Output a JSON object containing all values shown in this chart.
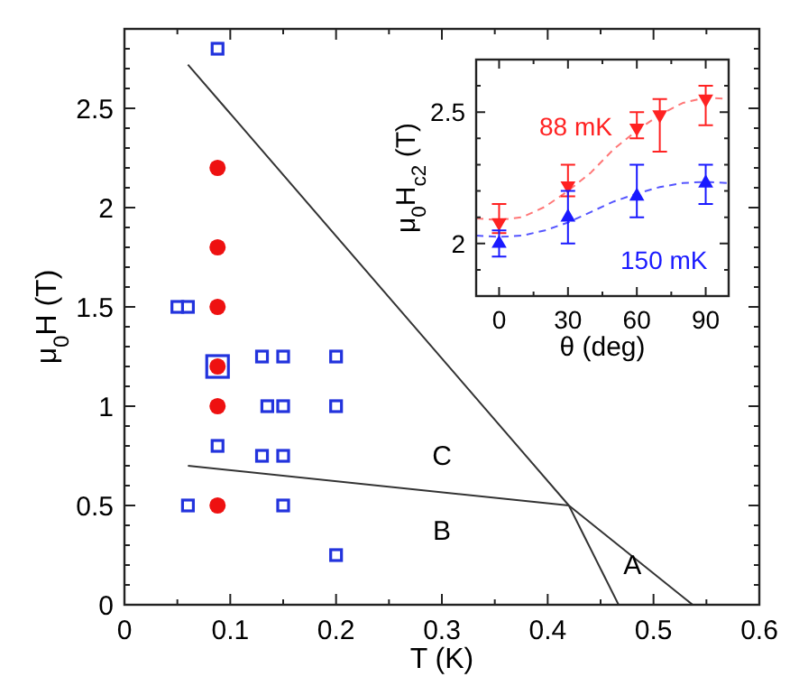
{
  "chart_data": [
    {
      "type": "scatter",
      "xlabel": "T (K)",
      "ylabel": "μ$_{0}$H (T)",
      "xlim": [
        0,
        0.6
      ],
      "ylim": [
        0,
        2.9
      ],
      "xticks": [
        0,
        {
          "value": 0.05,
          "label": null
        },
        0.1,
        {
          "value": 0.15,
          "label": null
        },
        0.2,
        {
          "value": 0.25,
          "label": null
        },
        0.3,
        {
          "value": 0.35,
          "label": null
        },
        0.4,
        {
          "value": 0.45,
          "label": null
        },
        0.5,
        {
          "value": 0.55,
          "label": null
        },
        0.6
      ],
      "yticks": [
        0,
        {
          "value": 0.1,
          "label": null
        },
        {
          "value": 0.2,
          "label": null
        },
        {
          "value": 0.3,
          "label": null
        },
        {
          "value": 0.4,
          "label": null
        },
        0.5,
        {
          "value": 0.6,
          "label": null
        },
        {
          "value": 0.7,
          "label": null
        },
        {
          "value": 0.8,
          "label": null
        },
        {
          "value": 0.9,
          "label": null
        },
        1,
        {
          "value": 1.1,
          "label": null
        },
        {
          "value": 1.2,
          "label": null
        },
        {
          "value": 1.3,
          "label": null
        },
        {
          "value": 1.4,
          "label": null
        },
        1.5,
        {
          "value": 1.6,
          "label": null
        },
        {
          "value": 1.7,
          "label": null
        },
        {
          "value": 1.8,
          "label": null
        },
        {
          "value": 1.9,
          "label": null
        },
        2,
        {
          "value": 2.1,
          "label": null
        },
        {
          "value": 2.2,
          "label": null
        },
        {
          "value": 2.3,
          "label": null
        },
        {
          "value": 2.4,
          "label": null
        },
        2.5,
        {
          "value": 2.6,
          "label": null
        },
        {
          "value": 2.7,
          "label": null
        },
        {
          "value": 2.8,
          "label": null
        }
      ],
      "series": [
        {
          "type": "line",
          "color": "#333333",
          "x": [
            0.06,
            0.42,
            0.537
          ],
          "values": [
            2.72,
            0.5,
            0
          ]
        },
        {
          "type": "line",
          "color": "#333333",
          "x": [
            0.06,
            0.42
          ],
          "values": [
            0.7,
            0.5
          ]
        },
        {
          "type": "line",
          "color": "#333333",
          "x": [
            0.42,
            0.467
          ],
          "values": [
            0.5,
            0
          ]
        },
        {
          "marker": "square",
          "color": "#2233dd",
          "x": [
            0.088,
            0.05,
            0.06,
            0.088,
            0.13,
            0.15,
            0.2,
            0.135,
            0.15,
            0.2,
            0.088,
            0.13,
            0.15,
            0.06,
            0.15,
            0.2
          ],
          "values": [
            2.8,
            1.5,
            1.5,
            1.2,
            1.25,
            1.25,
            1.25,
            1,
            1,
            1,
            0.8,
            0.75,
            0.75,
            0.5,
            0.5,
            0.25
          ],
          "sizes": [
            0.25,
            0.25,
            0.25,
            1,
            0.25,
            0.25,
            0.25,
            0.25,
            0.25,
            0.25,
            0.25,
            0.25,
            0.25,
            0.25,
            0.25,
            0.25
          ]
        },
        {
          "marker": "circle",
          "color": "#ee1111",
          "x": [
            0.088,
            0.088,
            0.088,
            0.088,
            0.088,
            0.088
          ],
          "values": [
            2.2,
            1.8,
            1.5,
            1.2,
            1,
            0.5
          ]
        }
      ],
      "annotations": [
        "A",
        "B",
        "C"
      ]
    },
    {
      "type": "scatter",
      "xlabel": "θ (deg)",
      "ylabel": "μ$_{0}$H$_{c2}$ (T)",
      "xlim": [
        -10,
        100
      ],
      "ylim": [
        1.8,
        2.7
      ],
      "xticks": [
        0,
        {
          "value": 15,
          "label": null
        },
        30,
        {
          "value": 45,
          "label": null
        },
        60,
        {
          "value": 75,
          "label": null
        },
        90
      ],
      "yticks": [
        {
          "value": 1.9,
          "label": null
        },
        2,
        {
          "value": 2.1,
          "label": null
        },
        {
          "value": 2.2,
          "label": null
        },
        {
          "value": 2.3,
          "label": null
        },
        {
          "value": 2.4,
          "label": null
        },
        2.5,
        {
          "value": 2.6,
          "label": null
        }
      ],
      "series": [
        {
          "type": "line",
          "line_style": "dashed",
          "color": "#ff7777",
          "x": [
            -10,
            0,
            10,
            20,
            30,
            40,
            50,
            60,
            70,
            80,
            90,
            100
          ],
          "values": [
            2.095,
            2.09,
            2.1,
            2.14,
            2.2,
            2.27,
            2.36,
            2.43,
            2.49,
            2.535,
            2.555,
            2.55
          ]
        },
        {
          "type": "line",
          "line_style": "dashed",
          "color": "#5555ff",
          "x": [
            -10,
            0,
            10,
            20,
            30,
            40,
            50,
            60,
            70,
            80,
            90,
            100
          ],
          "values": [
            2.03,
            2.025,
            2.03,
            2.05,
            2.08,
            2.12,
            2.16,
            2.19,
            2.215,
            2.23,
            2.235,
            2.23
          ]
        },
        {
          "name": "88 mK",
          "marker": "triangle-down",
          "color": "#ff2222",
          "x": [
            0,
            30,
            60,
            70,
            90
          ],
          "values": [
            2.08,
            2.22,
            2.44,
            2.49,
            2.55
          ],
          "errors": [
            [
              2.04,
              2.15
            ],
            [
              2.18,
              2.3
            ],
            [
              2.4,
              2.5
            ],
            [
              2.35,
              2.55
            ],
            [
              2.45,
              2.6
            ]
          ]
        },
        {
          "name": "150 mK",
          "marker": "triangle",
          "color": "#1a1aff",
          "x": [
            0,
            30,
            60,
            90
          ],
          "values": [
            2,
            2.1,
            2.18,
            2.23
          ],
          "errors": [
            [
              1.95,
              2.05
            ],
            [
              2,
              2.2
            ],
            [
              2.1,
              2.3
            ],
            [
              2.15,
              2.3
            ]
          ]
        }
      ]
    }
  ]
}
